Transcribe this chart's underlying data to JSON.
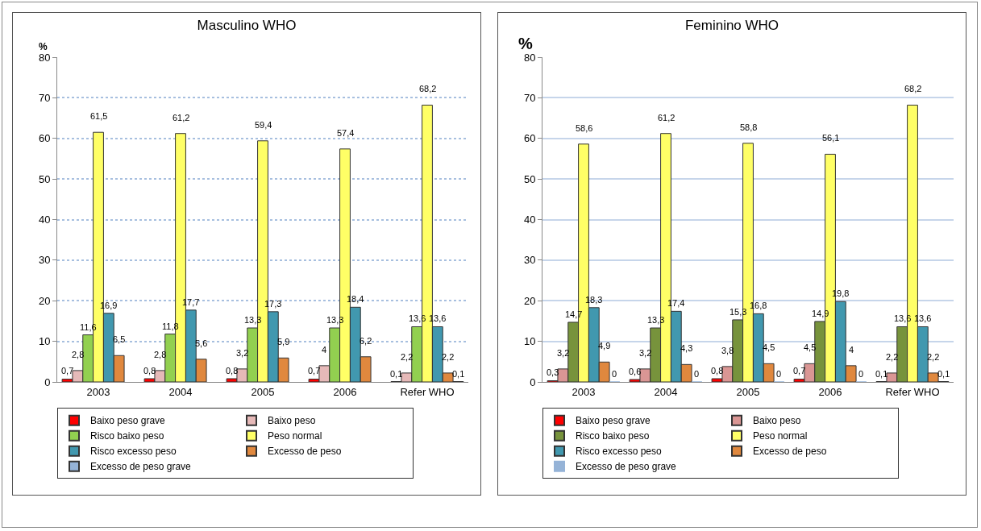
{
  "chart_data": [
    {
      "type": "bar",
      "title": "Masculino WHO",
      "ylabel": "%",
      "categories": [
        "2003",
        "2004",
        "2005",
        "2006",
        "Refer WHO"
      ],
      "ylim": [
        0,
        80
      ],
      "yticks": [
        0,
        10,
        20,
        30,
        40,
        50,
        60,
        70,
        80
      ],
      "grid": "y",
      "legend": "bottom",
      "series": [
        {
          "name": "Baixo peso grave",
          "color": "#ff0000",
          "values": [
            0.7,
            0.8,
            0.8,
            0.7,
            0.1
          ],
          "value_labels": [
            "0,7",
            "0,8",
            "0,8",
            "0,7",
            "0,1"
          ]
        },
        {
          "name": "Baixo peso",
          "color": "#e6b9b8",
          "values": [
            2.8,
            2.8,
            3.2,
            4,
            2.2
          ],
          "value_labels": [
            "2,8",
            "2,8",
            "3,2",
            "4",
            "2,2"
          ]
        },
        {
          "name": "Risco baixo peso",
          "color": "#92d050",
          "values": [
            11.6,
            11.8,
            13.3,
            13.3,
            13.6
          ],
          "value_labels": [
            "11,6",
            "11,8",
            "13,3",
            "13,3",
            "13,6"
          ]
        },
        {
          "name": "Peso normal",
          "color": "#ffff66",
          "values": [
            61.5,
            61.2,
            59.4,
            57.4,
            68.2
          ],
          "value_labels": [
            "61,5",
            "61,2",
            "59,4",
            "57,4",
            "68,2"
          ]
        },
        {
          "name": "Risco excesso peso",
          "color": "#4198af",
          "values": [
            16.9,
            17.7,
            17.3,
            18.4,
            13.6
          ],
          "value_labels": [
            "16,9",
            "17,7",
            "17,3",
            "18,4",
            "13,6"
          ]
        },
        {
          "name": "Excesso de peso",
          "color": "#e0883e",
          "values": [
            6.5,
            5.6,
            5.9,
            6.2,
            2.2
          ],
          "value_labels": [
            "6,5",
            "5,6",
            "5,9",
            "6,2",
            "2,2"
          ]
        },
        {
          "name": "Excesso de peso grave",
          "color": "#95b3d7",
          "values": [
            null,
            null,
            null,
            null,
            0.1
          ],
          "value_labels": [
            null,
            null,
            null,
            null,
            "0,1"
          ]
        }
      ]
    },
    {
      "type": "bar",
      "title": "Feminino WHO",
      "ylabel": "%",
      "categories": [
        "2003",
        "2004",
        "2005",
        "2006",
        "Refer WHO"
      ],
      "ylim": [
        0,
        80
      ],
      "yticks": [
        0,
        10,
        20,
        30,
        40,
        50,
        60,
        70,
        80
      ],
      "grid": "y",
      "legend": "bottom",
      "series": [
        {
          "name": "Baixo peso grave",
          "color": "#ff0000",
          "values": [
            0.3,
            0.6,
            0.8,
            0.7,
            0.1
          ],
          "value_labels": [
            "0,3",
            "0,6",
            "0,8",
            "0,7",
            "0,1"
          ]
        },
        {
          "name": "Baixo peso",
          "color": "#da9694",
          "values": [
            3.2,
            3.2,
            3.8,
            4.5,
            2.2
          ],
          "value_labels": [
            "3,2",
            "3,2",
            "3,8",
            "4,5",
            "2,2"
          ]
        },
        {
          "name": "Risco baixo peso",
          "color": "#77933c",
          "values": [
            14.7,
            13.3,
            15.3,
            14.9,
            13.6
          ],
          "value_labels": [
            "14,7",
            "13,3",
            "15,3",
            "14,9",
            "13,6"
          ]
        },
        {
          "name": "Peso normal",
          "color": "#ffff66",
          "values": [
            58.6,
            61.2,
            58.8,
            56.1,
            68.2
          ],
          "value_labels": [
            "58,6",
            "61,2",
            "58,8",
            "56,1",
            "68,2"
          ]
        },
        {
          "name": "Risco excesso peso",
          "color": "#4198af",
          "values": [
            18.3,
            17.4,
            16.8,
            19.8,
            13.6
          ],
          "value_labels": [
            "18,3",
            "17,4",
            "16,8",
            "19,8",
            "13,6"
          ]
        },
        {
          "name": "Excesso de peso",
          "color": "#e0883e",
          "values": [
            4.9,
            4.3,
            4.5,
            4,
            2.2
          ],
          "value_labels": [
            "4,9",
            "4,3",
            "4,5",
            "4",
            "2,2"
          ]
        },
        {
          "name": "Excesso de peso grave",
          "color": "#95b3d7",
          "values": [
            0,
            0,
            0,
            0,
            0.1
          ],
          "value_labels": [
            "0",
            "0",
            "0",
            "0",
            "0,1"
          ]
        }
      ]
    }
  ]
}
